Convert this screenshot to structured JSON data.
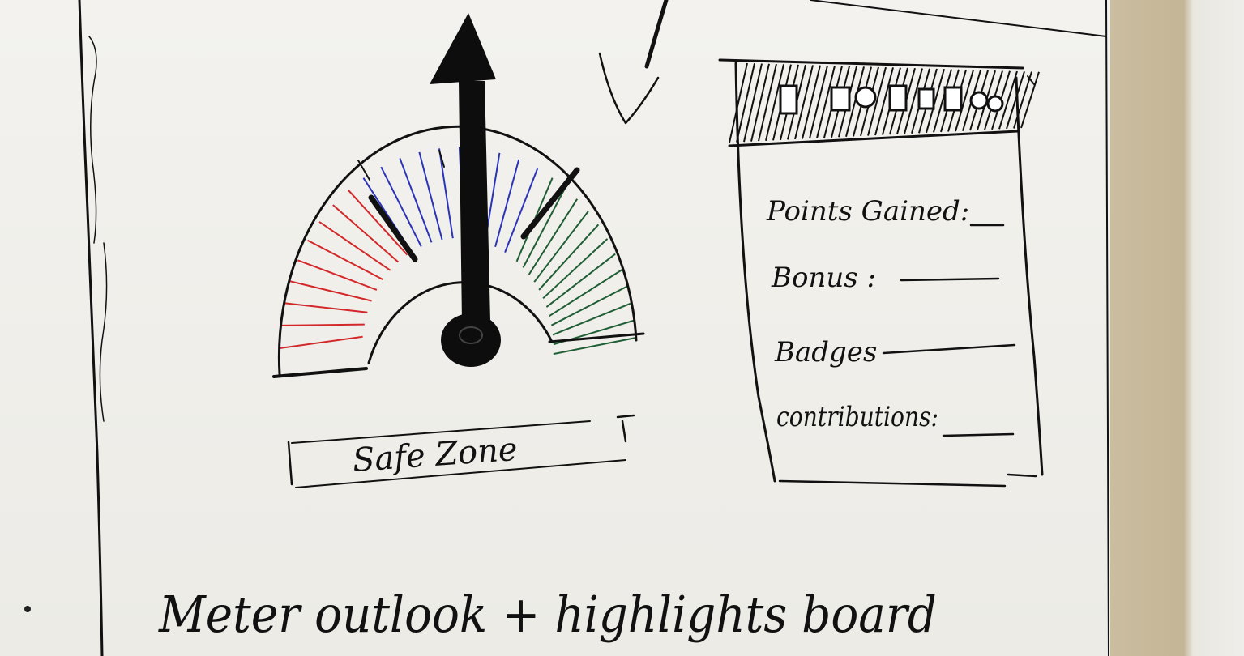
{
  "meter": {
    "safe_zone_label": "Safe Zone",
    "needle_icon": "arrow-up-icon",
    "bands": [
      {
        "name": "red",
        "color": "#d3282a"
      },
      {
        "name": "blue",
        "color": "#2b33b8"
      },
      {
        "name": "green",
        "color": "#1f5e35"
      }
    ]
  },
  "highlights": {
    "header_icons": [
      "icon-1",
      "icon-2",
      "icon-3",
      "icon-4",
      "icon-5",
      "icon-6",
      "icon-7"
    ],
    "fields": [
      {
        "label": "Points Gained:"
      },
      {
        "label": "Bonus :"
      },
      {
        "label": "Badges"
      },
      {
        "label": "contributions:"
      }
    ]
  },
  "caption": "Meter outlook + highlights board"
}
